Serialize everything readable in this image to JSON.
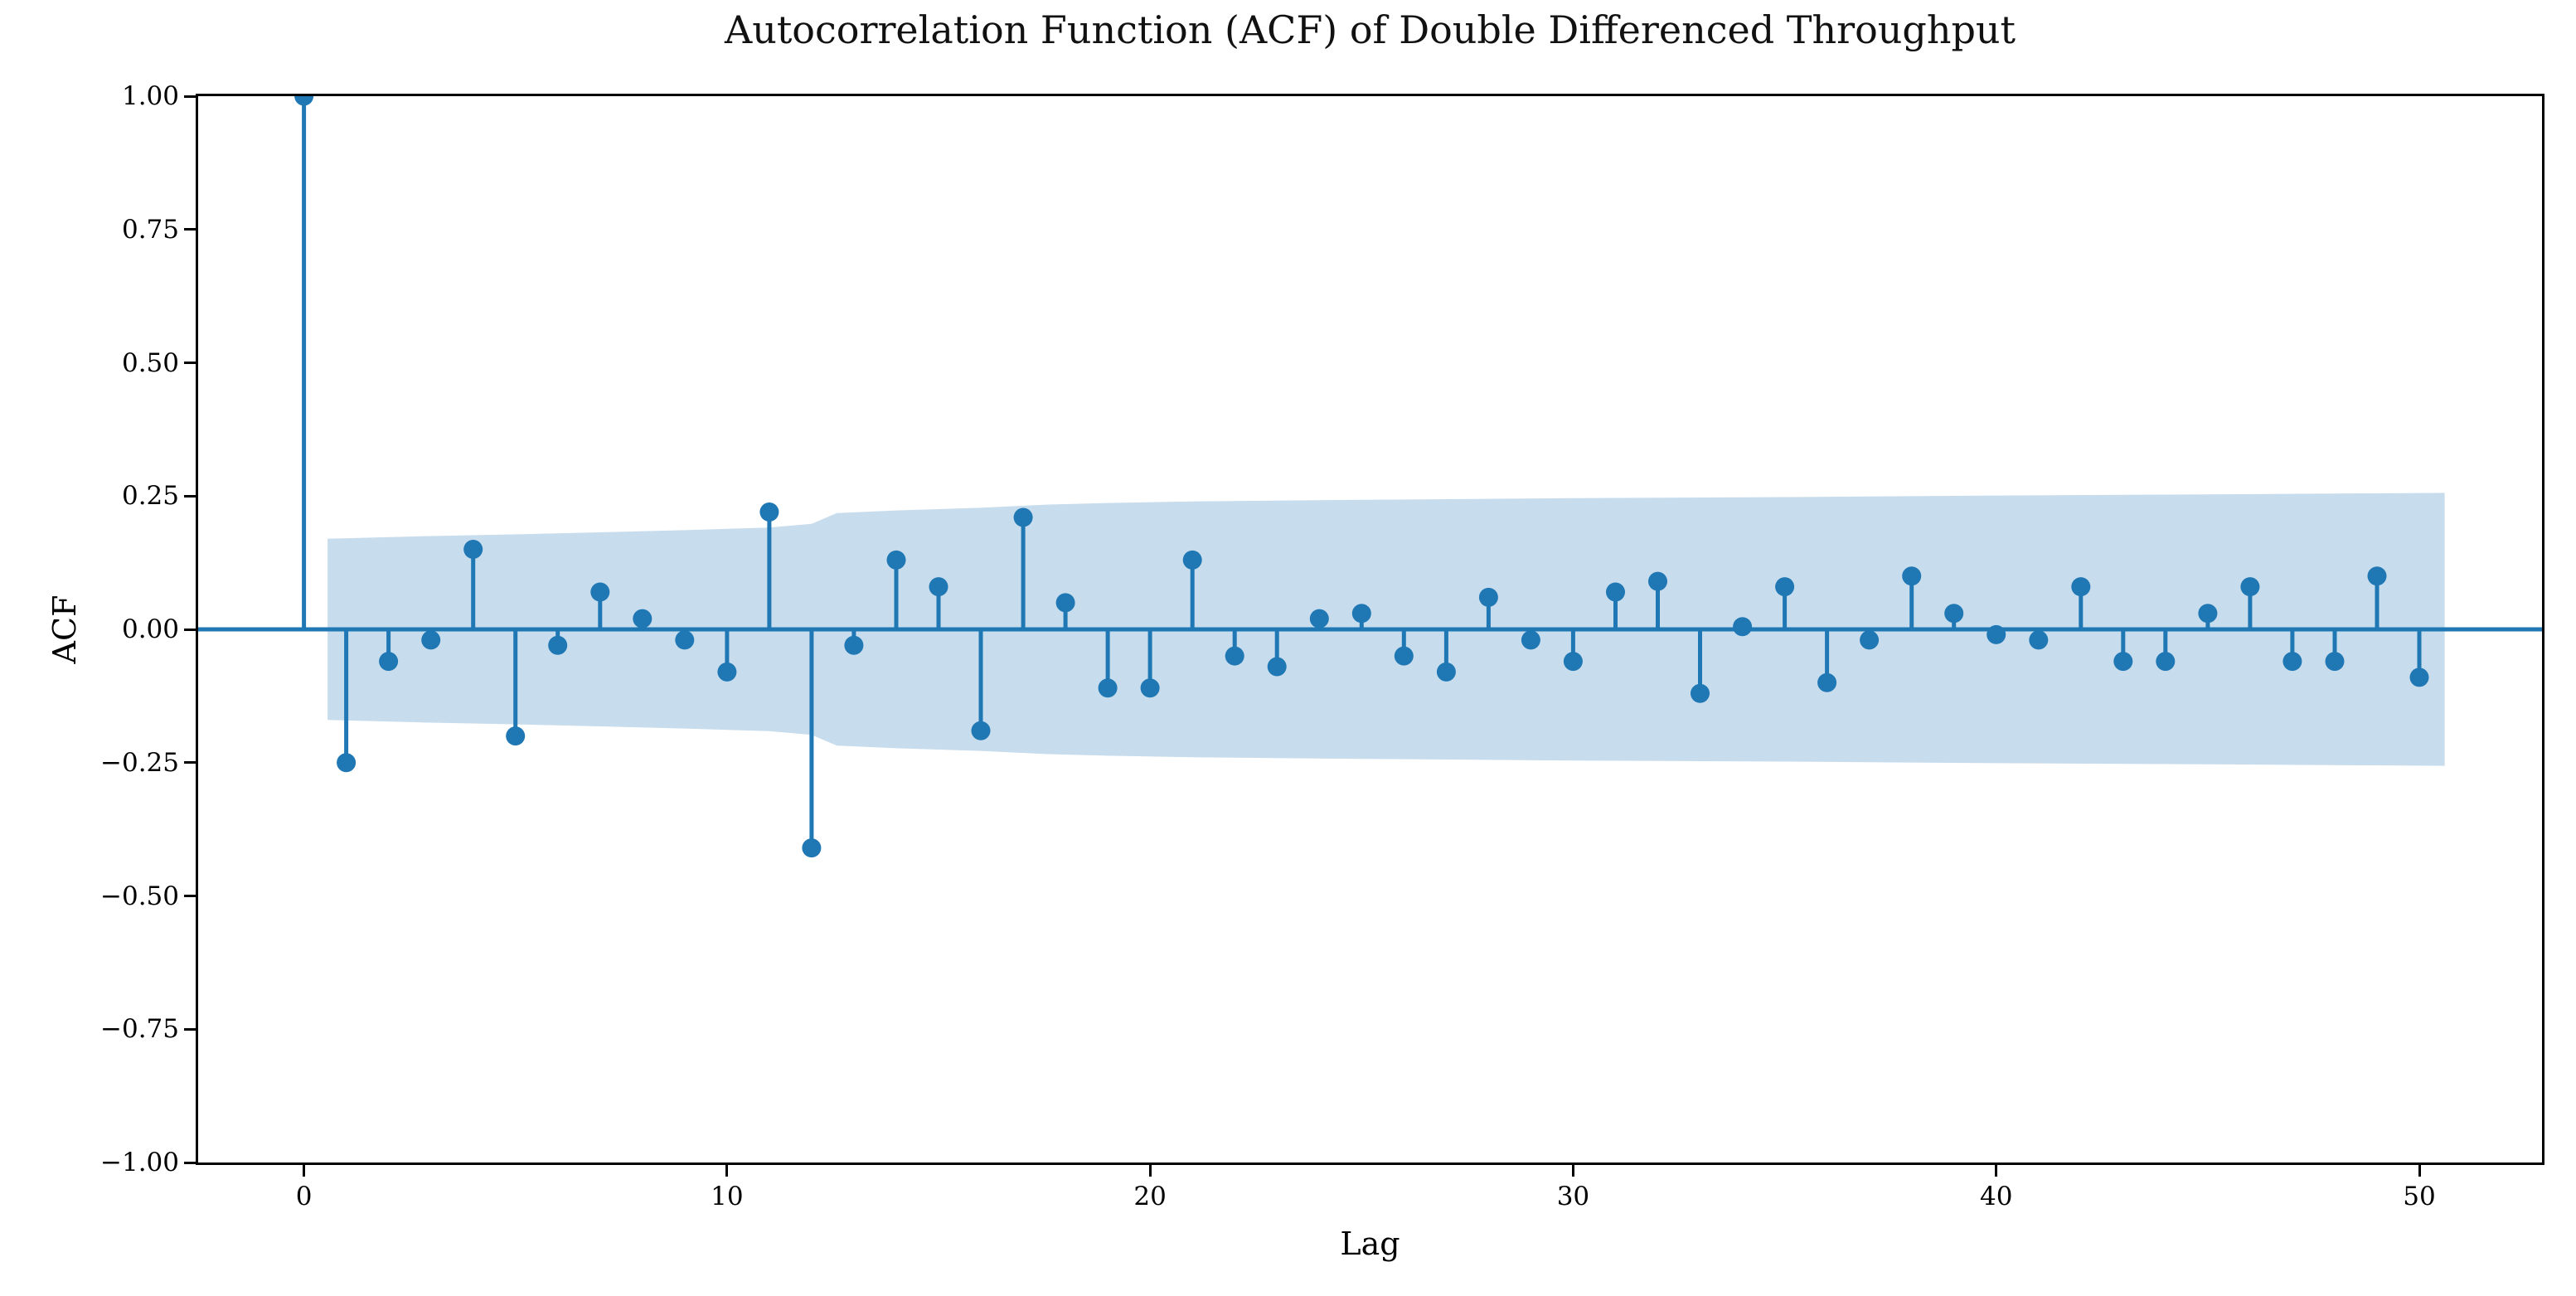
{
  "chart_data": {
    "type": "stem",
    "title": "Autocorrelation Function (ACF) of Double Differenced Throughput",
    "xlabel": "Lag",
    "ylabel": "ACF",
    "xlim": [
      -2.5,
      52.9
    ],
    "ylim": [
      -1.0,
      1.0
    ],
    "grid": false,
    "legend": "none",
    "x": [
      0,
      1,
      2,
      3,
      4,
      5,
      6,
      7,
      8,
      9,
      10,
      11,
      12,
      13,
      14,
      15,
      16,
      17,
      18,
      19,
      20,
      21,
      22,
      23,
      24,
      25,
      26,
      27,
      28,
      29,
      30,
      31,
      32,
      33,
      34,
      35,
      36,
      37,
      38,
      39,
      40,
      41,
      42,
      43,
      44,
      45,
      46,
      47,
      48,
      49,
      50
    ],
    "values": [
      1.0,
      -0.25,
      -0.06,
      -0.02,
      0.15,
      -0.2,
      -0.03,
      0.07,
      0.02,
      -0.02,
      -0.08,
      0.22,
      -0.41,
      -0.03,
      0.13,
      0.08,
      -0.19,
      0.21,
      0.05,
      -0.11,
      -0.11,
      0.13,
      -0.05,
      -0.07,
      0.02,
      0.03,
      -0.05,
      -0.08,
      0.06,
      -0.02,
      -0.06,
      0.07,
      0.09,
      -0.12,
      0.005,
      0.08,
      -0.1,
      -0.02,
      0.1,
      0.03,
      -0.01,
      -0.02,
      0.08,
      -0.06,
      -0.06,
      0.03,
      0.08,
      -0.06,
      -0.06,
      0.1,
      -0.09
    ],
    "confidence_band": {
      "description": "shaded 95% confidence interval, symmetric about zero, widening with lag",
      "symmetric": true,
      "points": [
        [
          0.56,
          0.17
        ],
        [
          3,
          0.175
        ],
        [
          6,
          0.18
        ],
        [
          9,
          0.186
        ],
        [
          11,
          0.191
        ],
        [
          12,
          0.198
        ],
        [
          12.6,
          0.218
        ],
        [
          14,
          0.223
        ],
        [
          16,
          0.228
        ],
        [
          17.6,
          0.234
        ],
        [
          19,
          0.237
        ],
        [
          21,
          0.24
        ],
        [
          25,
          0.243
        ],
        [
          30,
          0.246
        ],
        [
          35,
          0.248
        ],
        [
          40,
          0.251
        ],
        [
          45,
          0.253
        ],
        [
          50.6,
          0.256
        ]
      ]
    },
    "yticks": [
      {
        "value": 1.0,
        "label": "1.00"
      },
      {
        "value": 0.75,
        "label": "0.75"
      },
      {
        "value": 0.5,
        "label": "0.50"
      },
      {
        "value": 0.25,
        "label": "0.25"
      },
      {
        "value": 0.0,
        "label": "0.00"
      },
      {
        "value": -0.25,
        "label": "−0.25"
      },
      {
        "value": -0.5,
        "label": "−0.50"
      },
      {
        "value": -0.75,
        "label": "−0.75"
      },
      {
        "value": -1.0,
        "label": "−1.00"
      }
    ],
    "xticks": [
      {
        "value": 0,
        "label": "0"
      },
      {
        "value": 10,
        "label": "10"
      },
      {
        "value": 20,
        "label": "20"
      },
      {
        "value": 30,
        "label": "30"
      },
      {
        "value": 40,
        "label": "40"
      },
      {
        "value": 50,
        "label": "50"
      }
    ],
    "colors": {
      "stem": "#1f77b4",
      "marker": "#1f77b4",
      "zero_line": "#1f77b4",
      "band": "#c7dcec",
      "spine": "#000000",
      "text": "#000000"
    }
  }
}
